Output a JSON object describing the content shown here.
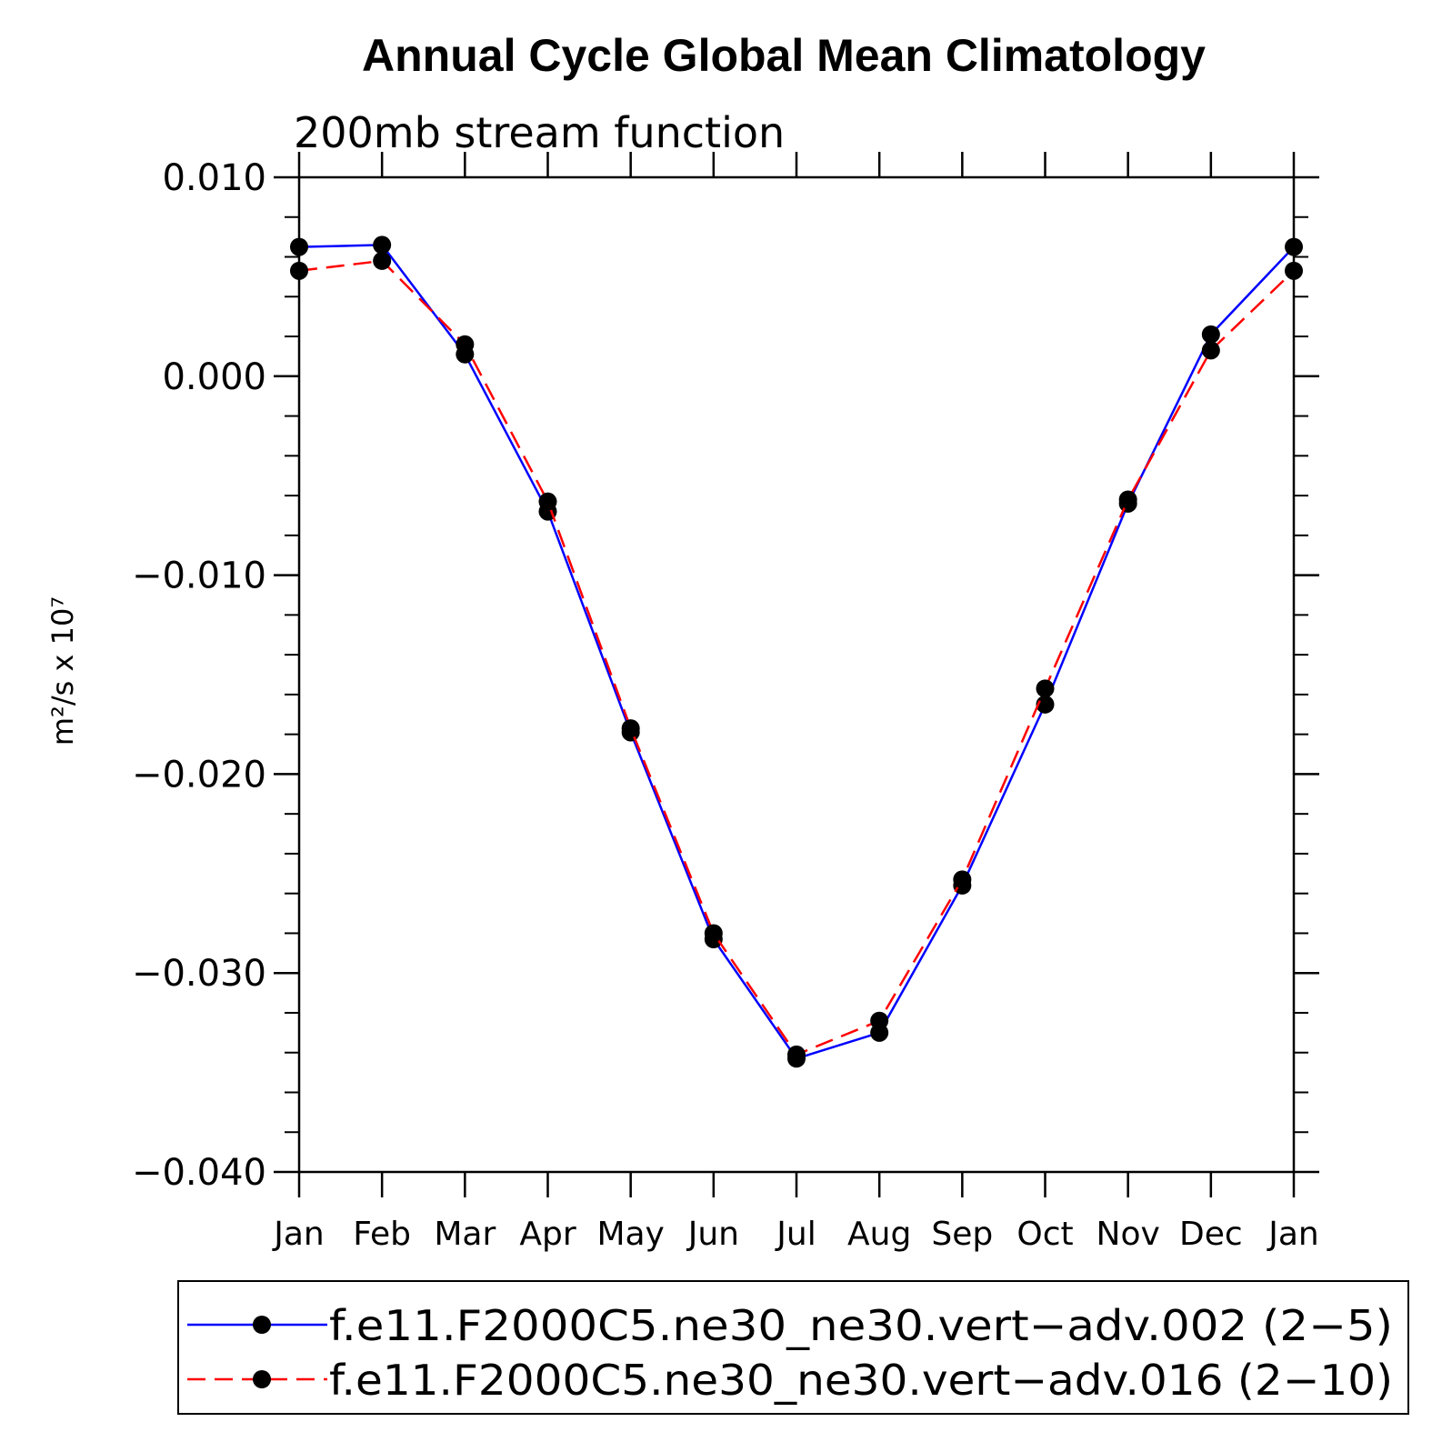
{
  "chart_data": {
    "type": "line",
    "title": "Annual Cycle Global Mean Climatology",
    "subtitle": "200mb stream function",
    "ylabel": "m²/s x 10⁷",
    "xlabel": "",
    "categories": [
      "Jan",
      "Feb",
      "Mar",
      "Apr",
      "May",
      "Jun",
      "Jul",
      "Aug",
      "Sep",
      "Oct",
      "Nov",
      "Dec",
      "Jan"
    ],
    "ylim": [
      -0.04,
      0.01
    ],
    "yticks": [
      0.01,
      0.0,
      -0.01,
      -0.02,
      -0.03,
      -0.04
    ],
    "ytick_labels": [
      "0.010",
      "0.000",
      "−0.010",
      "−0.020",
      "−0.030",
      "−0.040"
    ],
    "grid": false,
    "legend_position": "bottom",
    "series": [
      {
        "name": "f.e11.F2000C5.ne30_ne30.vert−adv.002 (2−5)",
        "color": "#0000ff",
        "linestyle": "solid",
        "marker": "filled-circle",
        "values": [
          0.0065,
          0.0066,
          0.0011,
          -0.0068,
          -0.0179,
          -0.0283,
          -0.0343,
          -0.033,
          -0.0256,
          -0.0165,
          -0.0064,
          0.0021,
          0.0065
        ]
      },
      {
        "name": "f.e11.F2000C5.ne30_ne30.vert−adv.016 (2−10)",
        "color": "#ff0000",
        "linestyle": "dashed",
        "marker": "filled-circle",
        "values": [
          0.0053,
          0.0058,
          0.0016,
          -0.0063,
          -0.0177,
          -0.028,
          -0.0341,
          -0.0324,
          -0.0253,
          -0.0157,
          -0.0062,
          0.0013,
          0.0053
        ]
      }
    ]
  }
}
